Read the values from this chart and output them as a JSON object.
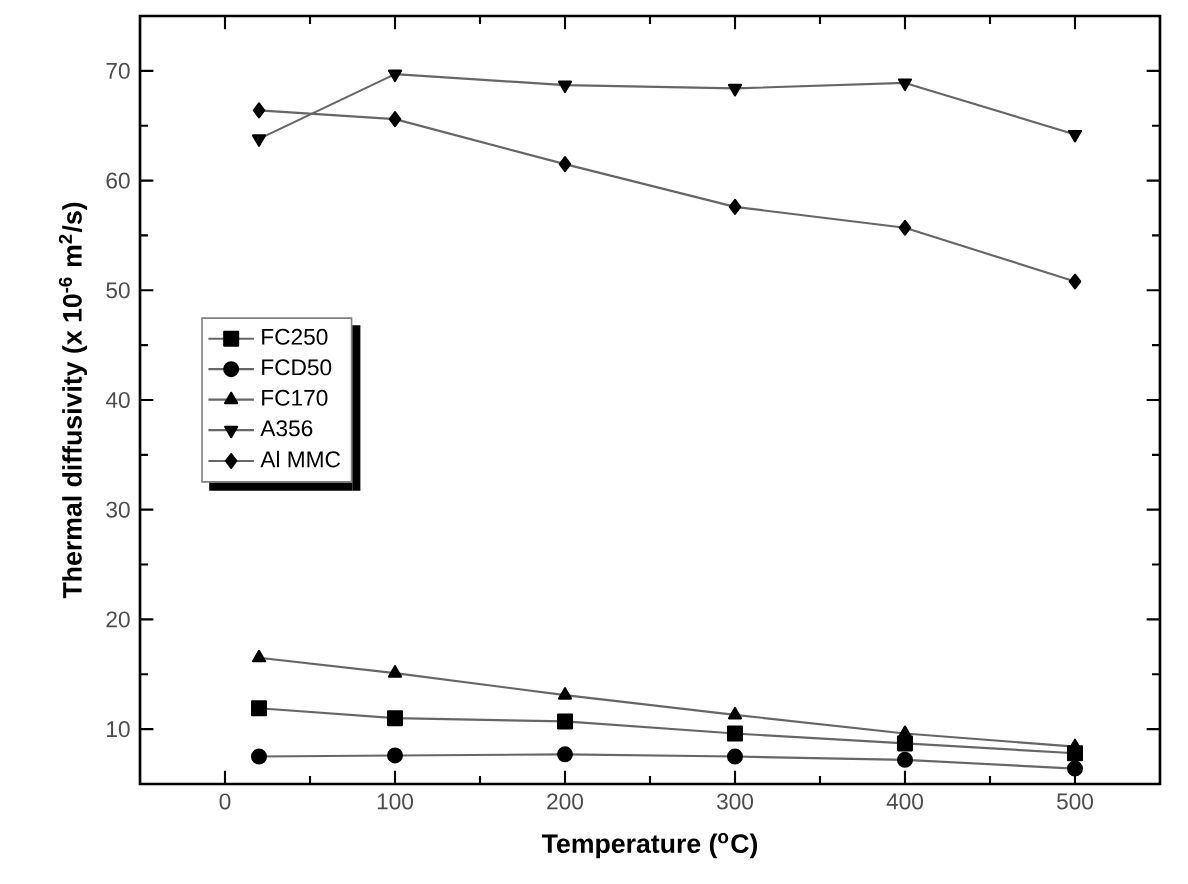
{
  "chart_data": {
    "type": "line",
    "xlabel": "Temperature  ($^{o}$C)",
    "ylabel": "Thermal diffusivity (x 10$^{-6}$ m$^{2}$/s)",
    "x": [
      20,
      100,
      200,
      300,
      400,
      500
    ],
    "xlim": [
      -50,
      550
    ],
    "xticks": [
      0,
      100,
      200,
      300,
      400,
      500
    ],
    "ylim": [
      5,
      75
    ],
    "yticks": [
      10,
      20,
      30,
      40,
      50,
      60,
      70
    ],
    "legend": "left",
    "grid": false,
    "line_style": "solid",
    "series": [
      {
        "name": "FC250",
        "color": "#000000",
        "marker": "square",
        "values": [
          11.9,
          11.0,
          10.7,
          9.6,
          8.7,
          7.8
        ]
      },
      {
        "name": "FCD50",
        "color": "#000000",
        "marker": "circle",
        "values": [
          7.5,
          7.6,
          7.7,
          7.5,
          7.2,
          6.4
        ]
      },
      {
        "name": "FC170",
        "color": "#000000",
        "marker": "triangle",
        "values": [
          16.5,
          15.1,
          13.1,
          11.3,
          9.6,
          8.4
        ]
      },
      {
        "name": "A356",
        "color": "#000000",
        "marker": "triangle down",
        "values": [
          63.8,
          69.7,
          68.7,
          68.4,
          68.9,
          64.2
        ]
      },
      {
        "name": "Al MMC",
        "color": "#000000",
        "marker": "diamond",
        "values": [
          66.4,
          65.6,
          61.5,
          57.6,
          55.7,
          50.8
        ]
      }
    ]
  }
}
